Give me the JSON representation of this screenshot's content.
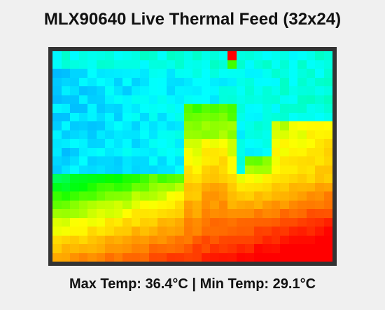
{
  "window": {
    "title": "MLX90640 Live Thermal Feed (32x24)"
  },
  "thermal": {
    "resolution": {
      "cols": 32,
      "rows": 24
    },
    "max_temp": 36.4,
    "min_temp": 29.1,
    "colormap": [
      "#0000ff",
      "#00ffff",
      "#00ff00",
      "#ffff00",
      "#ff8000",
      "#ff0000"
    ]
  },
  "stats": {
    "label": "Max Temp: 36.4°C | Min Temp: 29.1°C"
  }
}
